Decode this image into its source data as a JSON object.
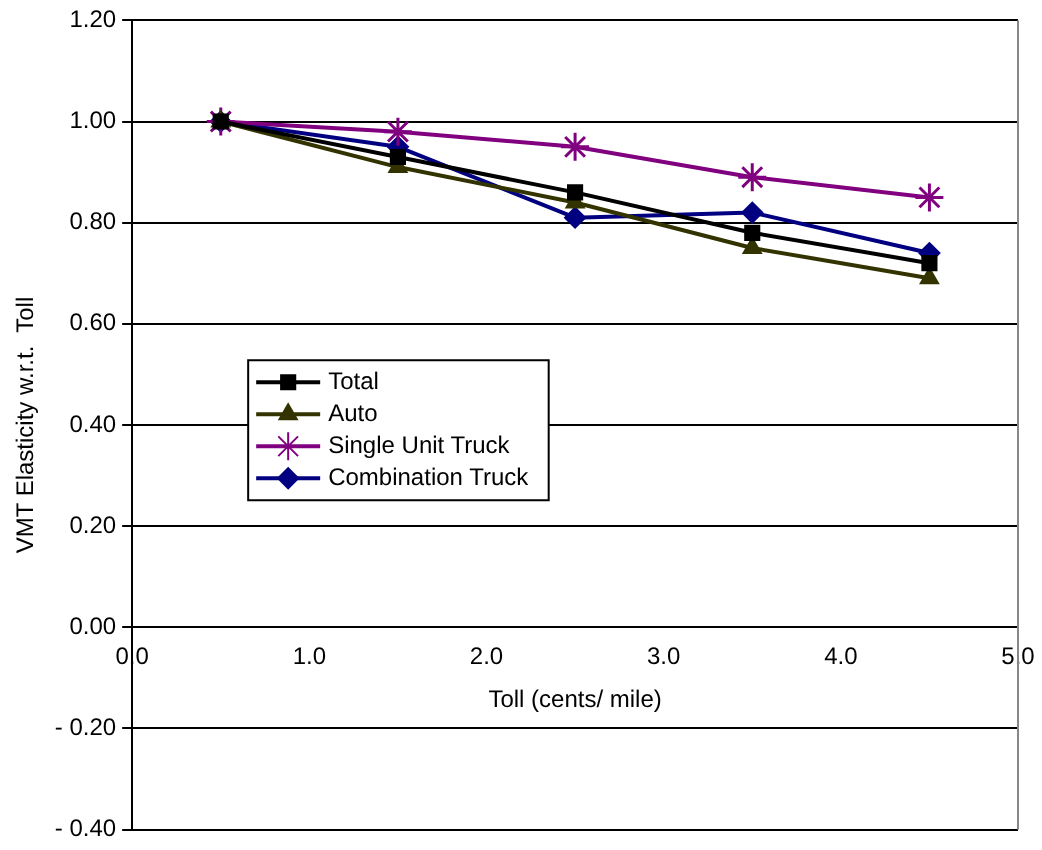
{
  "chart_data": {
    "type": "line",
    "xlabel": "Toll (cents/ mile)",
    "ylabel": "VMT Elasticity w.r.t.  Toll",
    "x": [
      0.5,
      1.5,
      2.5,
      3.5,
      4.5
    ],
    "series": [
      {
        "name": "Total",
        "color": "#000000",
        "marker": "square",
        "values": [
          1.0,
          0.93,
          0.86,
          0.78,
          0.72
        ]
      },
      {
        "name": "Auto",
        "color": "#333300",
        "marker": "triangle",
        "values": [
          1.0,
          0.91,
          0.84,
          0.75,
          0.69
        ]
      },
      {
        "name": "Single Unit Truck",
        "color": "#800080",
        "marker": "cross",
        "values": [
          1.0,
          0.98,
          0.95,
          0.89,
          0.85
        ]
      },
      {
        "name": "Combination Truck",
        "color": "#000080",
        "marker": "diamond",
        "values": [
          1.0,
          0.95,
          0.81,
          0.82,
          0.74
        ]
      }
    ],
    "xlim": [
      0,
      5
    ],
    "xticks": [
      {
        "value": 0,
        "label": "0.0"
      },
      {
        "value": 1,
        "label": "1.0"
      },
      {
        "value": 2,
        "label": "2.0"
      },
      {
        "value": 3,
        "label": "3.0"
      },
      {
        "value": 4,
        "label": "4.0"
      },
      {
        "value": 5,
        "label": "5.0"
      }
    ],
    "ylim": [
      -0.4,
      1.2
    ],
    "yticks": [
      {
        "value": -0.4,
        "label": "- 0.40"
      },
      {
        "value": -0.2,
        "label": "- 0.20"
      },
      {
        "value": 0,
        "label": "0.00"
      },
      {
        "value": 0.2,
        "label": "0.20"
      },
      {
        "value": 0.4,
        "label": "0.40"
      },
      {
        "value": 0.6,
        "label": "0.60"
      },
      {
        "value": 0.8,
        "label": "0.80"
      },
      {
        "value": 1.0,
        "label": "1.00"
      },
      {
        "value": 1.2,
        "label": "1.20"
      }
    ],
    "grid": "y",
    "legend": "center left",
    "line_style": "solid"
  }
}
